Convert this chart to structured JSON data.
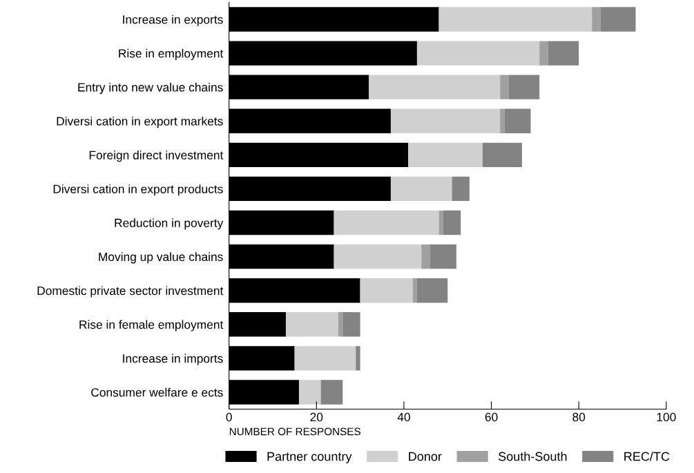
{
  "chart_data": {
    "type": "bar",
    "orientation": "horizontal",
    "stacked": true,
    "categories": [
      "Increase in exports",
      "Rise in employment",
      "Entry into new value chains",
      "Diversi cation in export markets",
      "Foreign direct investment",
      "Diversi cation in export products",
      "Reduction in poverty",
      "Moving up value chains",
      "Domestic private sector investment",
      "Rise in female employment",
      "Increase in imports",
      "Consumer welfare e ects"
    ],
    "series": [
      {
        "name": "Partner country",
        "color": "#000000",
        "values": [
          48,
          43,
          32,
          37,
          41,
          37,
          24,
          24,
          30,
          13,
          15,
          16
        ]
      },
      {
        "name": "Donor",
        "color": "#d0d0d0",
        "values": [
          35,
          28,
          30,
          25,
          17,
          14,
          24,
          20,
          12,
          12,
          14,
          5
        ]
      },
      {
        "name": "South-South",
        "color": "#a0a0a0",
        "values": [
          2,
          2,
          2,
          1,
          0,
          0,
          1,
          2,
          1,
          1,
          0,
          0
        ]
      },
      {
        "name": "REC/TC",
        "color": "#838383",
        "values": [
          8,
          7,
          7,
          6,
          9,
          4,
          4,
          6,
          7,
          4,
          1,
          5
        ]
      }
    ],
    "xlabel": "NUMBER OF RESPONSES",
    "xlim": [
      0,
      100
    ],
    "xticks": [
      0,
      20,
      40,
      60,
      80,
      100
    ],
    "grid": false,
    "legend": "bottom"
  }
}
